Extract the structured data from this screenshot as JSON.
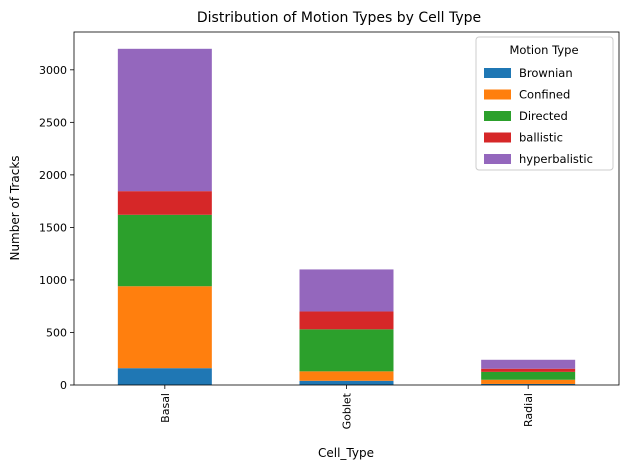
{
  "chart_data": {
    "type": "bar",
    "stacked": true,
    "title": "Distribution of Motion Types by Cell Type",
    "xlabel": "Cell_Type",
    "ylabel": "Number of Tracks",
    "categories": [
      "Basal",
      "Goblet",
      "Radial"
    ],
    "ylim": [
      0,
      3360
    ],
    "yticks": [
      0,
      500,
      1000,
      1500,
      2000,
      2500,
      3000
    ],
    "grid": false,
    "legend": {
      "title": "Motion Type",
      "placement": "top-right"
    },
    "series": [
      {
        "name": "Brownian",
        "color": "#1f77b4",
        "values": [
          160,
          40,
          10
        ]
      },
      {
        "name": "Confined",
        "color": "#ff7f0e",
        "values": [
          780,
          90,
          40
        ]
      },
      {
        "name": "Directed",
        "color": "#2ca02c",
        "values": [
          680,
          400,
          75
        ]
      },
      {
        "name": "ballistic",
        "color": "#d62728",
        "values": [
          225,
          170,
          30
        ]
      },
      {
        "name": "hyperbalistic",
        "color": "#9467bd",
        "values": [
          1355,
          400,
          85
        ]
      }
    ]
  }
}
